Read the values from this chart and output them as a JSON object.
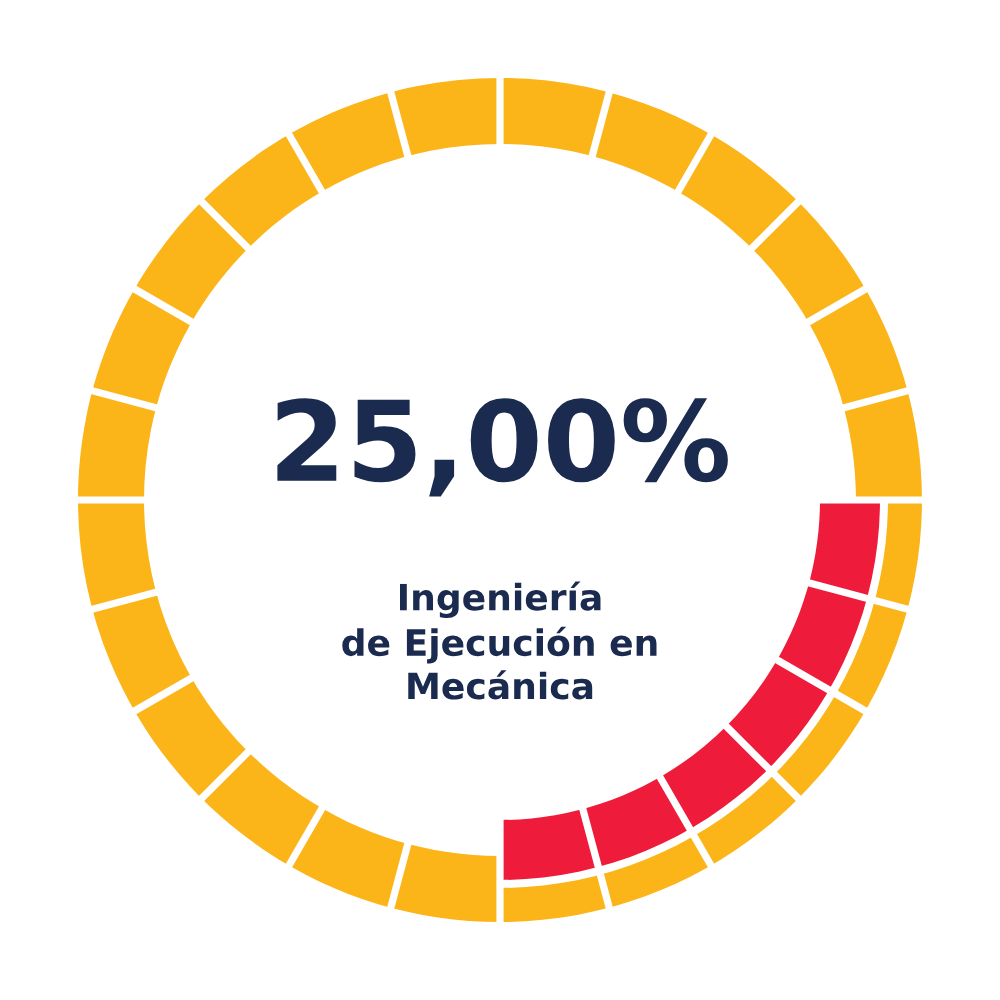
{
  "chart_data": {
    "type": "donut",
    "title": "25,00%",
    "subtitle": "Ingeniería\nde Ejecución en\nMecánica",
    "categories": [
      null,
      null
    ],
    "values": [
      25,
      75
    ],
    "colors": [
      "#ee1b3a",
      "#fbb519"
    ]
  }
}
